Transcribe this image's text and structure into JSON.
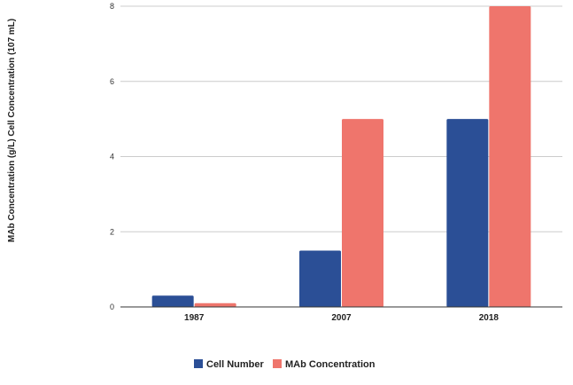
{
  "chart_data": {
    "type": "bar",
    "ylabel": "MAb Concentration (g/L)  Cell Concentration (107 mL)",
    "categories": [
      "1987",
      "2007",
      "2018"
    ],
    "ylim": [
      0,
      8
    ],
    "yticks": [
      "0",
      "2",
      "4",
      "6",
      "8"
    ],
    "grid": true,
    "legend": "bottom-center",
    "series": [
      {
        "name": "Cell Number",
        "color": "#2B4F96",
        "values": [
          0.3,
          1.5,
          5
        ]
      },
      {
        "name": "MAb Concentration",
        "color": "#EF756C",
        "values": [
          0.1,
          5,
          8
        ]
      }
    ]
  }
}
